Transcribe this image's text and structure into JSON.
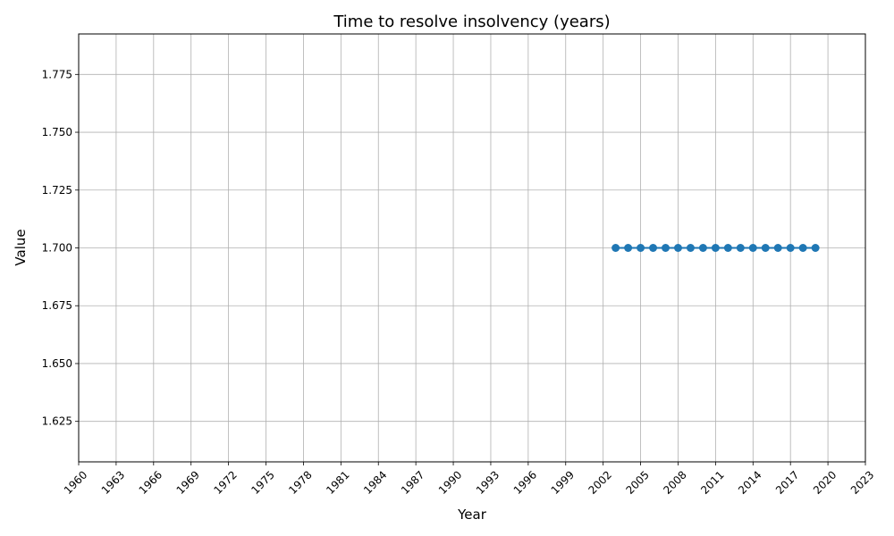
{
  "chart_data": {
    "type": "line",
    "title": "Time to resolve insolvency (years)",
    "xlabel": "Year",
    "ylabel": "Value",
    "xlim": [
      1960,
      2023
    ],
    "ylim": [
      1.6075,
      1.7925
    ],
    "x_ticks": [
      "1960",
      "1963",
      "1966",
      "1969",
      "1972",
      "1975",
      "1978",
      "1981",
      "1984",
      "1987",
      "1990",
      "1993",
      "1996",
      "1999",
      "2002",
      "2005",
      "2008",
      "2011",
      "2014",
      "2017",
      "2020",
      "2023"
    ],
    "y_ticks": [
      "1.625",
      "1.650",
      "1.675",
      "1.700",
      "1.725",
      "1.750",
      "1.775"
    ],
    "grid": true,
    "color": "#1f77b4",
    "x": [
      2003,
      2004,
      2005,
      2006,
      2007,
      2008,
      2009,
      2010,
      2011,
      2012,
      2013,
      2014,
      2015,
      2016,
      2017,
      2018,
      2019
    ],
    "series": [
      {
        "values": [
          1.7,
          1.7,
          1.7,
          1.7,
          1.7,
          1.7,
          1.7,
          1.7,
          1.7,
          1.7,
          1.7,
          1.7,
          1.7,
          1.7,
          1.7,
          1.7,
          1.7
        ]
      }
    ]
  }
}
